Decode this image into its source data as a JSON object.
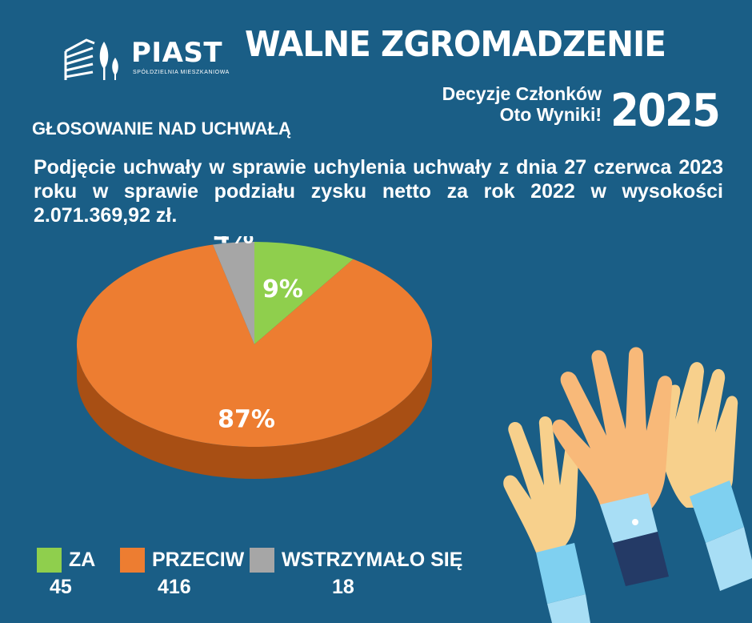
{
  "logo": {
    "brand": "PIAST",
    "subtitle": "SPÓŁDZIELNIA MIESZKANIOWA",
    "icon": "buildings-and-trees-logo"
  },
  "header": {
    "title": "WALNE ZGROMADZENIE",
    "tagline_line1": "Decyzje Członków",
    "tagline_line2": "Oto Wyniki!",
    "year": "2025"
  },
  "section_label": "GŁOSOWANIE NAD UCHWAŁĄ",
  "question": "Podjęcie uchwały w sprawie uchylenia uchwały z dnia 27 czerwca 2023 roku w sprawie podziału zysku netto za rok 2022 w wysokości 2.071.369,92 zł.",
  "chart_data": {
    "type": "pie",
    "style": "3d",
    "categories": [
      "ZA",
      "PRZECIW",
      "WSTRZYMAŁO SIĘ"
    ],
    "values": [
      45,
      416,
      18
    ],
    "percent_labels": [
      "9%",
      "87%",
      "4%"
    ],
    "colors": [
      "#8fcf4d",
      "#ed7d31",
      "#a6a6a6"
    ],
    "side_colors": [
      "#5f8f30",
      "#a84f14",
      "#707070"
    ],
    "legend_position": "bottom"
  },
  "decoration": {
    "icon": "raised-hands-illustration"
  }
}
